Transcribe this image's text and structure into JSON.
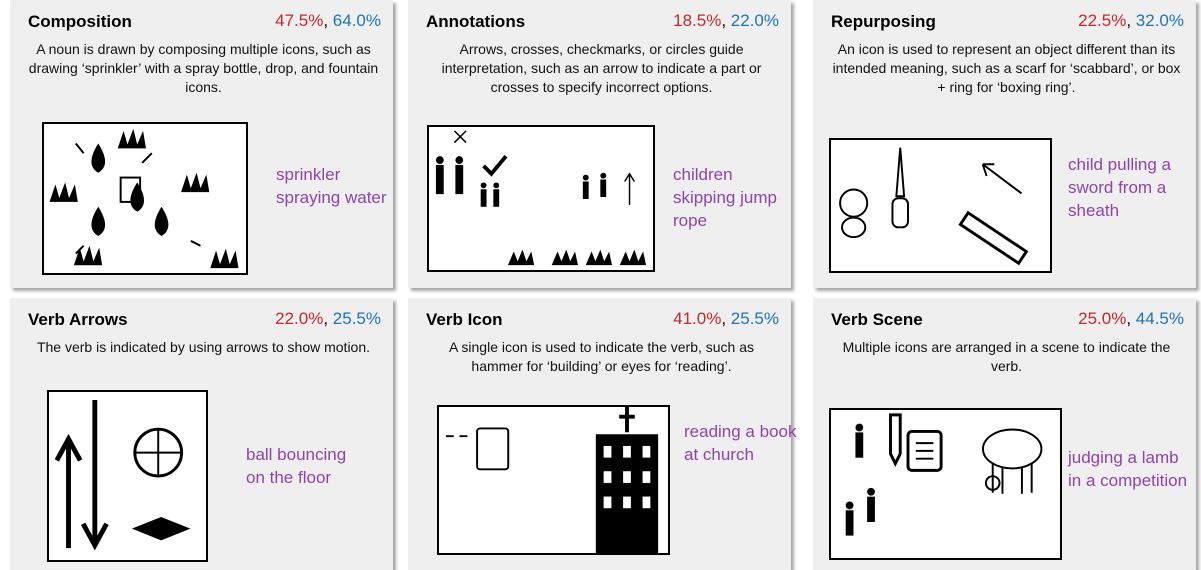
{
  "score_separator": ", ",
  "cards": [
    {
      "title": "Composition",
      "scores": [
        "47.5%",
        "64.0%"
      ],
      "description": "A noun is drawn by composing multiple icons, such as drawing ‘sprinkler’ with a spray bottle, drop, and fountain icons.",
      "caption": "sprinkler spraying water"
    },
    {
      "title": "Annotations",
      "scores": [
        "18.5%",
        "22.0%"
      ],
      "description": "Arrows, crosses, checkmarks, or circles guide interpretation, such as an arrow to indicate a part or crosses to specify incorrect options.",
      "caption": "children skipping jump rope"
    },
    {
      "title": "Repurposing",
      "scores": [
        "22.5%",
        "32.0%"
      ],
      "description": "An icon is used to represent an object different than its intended meaning, such as a scarf for ‘scabbard’, or box + ring for ‘boxing ring’.",
      "caption": "child pulling a sword from a sheath"
    },
    {
      "title": "Verb Arrows",
      "scores": [
        "22.0%",
        "25.5%"
      ],
      "description": "The verb is indicated by using arrows to show motion.",
      "caption": "ball bouncing on the floor"
    },
    {
      "title": "Verb Icon",
      "scores": [
        "41.0%",
        "25.5%"
      ],
      "description": "A single icon is used to indicate the verb, such as hammer for ‘building’ or eyes for ‘reading’.",
      "caption": "reading a book at church"
    },
    {
      "title": "Verb Scene",
      "scores": [
        "25.0%",
        "44.5%"
      ],
      "description": "Multiple icons are arranged in a scene to indicate the verb.",
      "caption": "judging a lamb in a competition"
    }
  ]
}
